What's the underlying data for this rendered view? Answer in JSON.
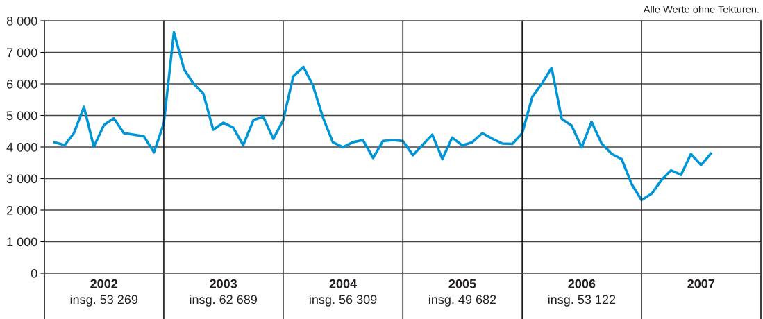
{
  "chart_data": {
    "type": "line",
    "x": [
      "2002-01",
      "2002-02",
      "2002-03",
      "2002-04",
      "2002-05",
      "2002-06",
      "2002-07",
      "2002-08",
      "2002-09",
      "2002-10",
      "2002-11",
      "2002-12",
      "2003-01",
      "2003-02",
      "2003-03",
      "2003-04",
      "2003-05",
      "2003-06",
      "2003-07",
      "2003-08",
      "2003-09",
      "2003-10",
      "2003-11",
      "2003-12",
      "2004-01",
      "2004-02",
      "2004-03",
      "2004-04",
      "2004-05",
      "2004-06",
      "2004-07",
      "2004-08",
      "2004-09",
      "2004-10",
      "2004-11",
      "2004-12",
      "2005-01",
      "2005-02",
      "2005-03",
      "2005-04",
      "2005-05",
      "2005-06",
      "2005-07",
      "2005-08",
      "2005-09",
      "2005-10",
      "2005-11",
      "2005-12",
      "2006-01",
      "2006-02",
      "2006-03",
      "2006-04",
      "2006-05",
      "2006-06",
      "2006-07",
      "2006-08",
      "2006-09",
      "2006-10",
      "2006-11",
      "2006-12",
      "2007-01",
      "2007-02",
      "2007-03",
      "2007-04",
      "2007-05",
      "2007-06",
      "2007-07"
    ],
    "series": [
      {
        "color": "#0096d6",
        "values": [
          4150,
          4060,
          4440,
          5270,
          4010,
          4700,
          4910,
          4440,
          4390,
          4340,
          3830,
          4750,
          7640,
          6460,
          6020,
          5690,
          4550,
          4770,
          4620,
          4060,
          4850,
          4960,
          4260,
          4850,
          6240,
          6540,
          5950,
          4930,
          4150,
          3990,
          4150,
          4220,
          3650,
          4190,
          4220,
          4190,
          3740,
          4080,
          4390,
          3620,
          4300,
          4050,
          4150,
          4440,
          4260,
          4110,
          4100,
          4440,
          5590,
          6040,
          6510,
          4890,
          4680,
          3990,
          4800,
          4110,
          3780,
          3620,
          2820,
          2320,
          2520,
          2970,
          3260,
          3120,
          3780,
          3430,
          3790
        ]
      }
    ],
    "xlim": [
      "2001-12",
      "2007-12"
    ],
    "xticks": [
      {
        "value": "2002-06",
        "label": "2002"
      },
      {
        "value": "2003-06",
        "label": "2003"
      },
      {
        "value": "2004-06",
        "label": "2004"
      },
      {
        "value": "2005-06",
        "label": "2005"
      },
      {
        "value": "2006-06",
        "label": "2006"
      },
      {
        "value": "2007-06",
        "label": "2007"
      }
    ],
    "ylim": [
      0,
      8000
    ],
    "yticks": [
      {
        "value": 0,
        "label": "0"
      },
      {
        "value": 1000,
        "label": "1 000"
      },
      {
        "value": 2000,
        "label": "2 000"
      },
      {
        "value": 3000,
        "label": "3 000"
      },
      {
        "value": 4000,
        "label": "4 000"
      },
      {
        "value": 5000,
        "label": "5 000"
      },
      {
        "value": 6000,
        "label": "6 000"
      },
      {
        "value": 7000,
        "label": "7 000"
      },
      {
        "value": 8000,
        "label": "8 000"
      }
    ],
    "grid": "y",
    "ref_lines": [
      {
        "axis": "x",
        "value": "2002-12",
        "color": "#1a1a1a"
      },
      {
        "axis": "x",
        "value": "2003-12",
        "color": "#1a1a1a"
      },
      {
        "axis": "x",
        "value": "2004-12",
        "color": "#1a1a1a"
      },
      {
        "axis": "x",
        "value": "2005-12",
        "color": "#1a1a1a"
      },
      {
        "axis": "x",
        "value": "2006-12",
        "color": "#1a1a1a"
      }
    ],
    "annotations": [
      "Alle Werte ohne Tekturen.",
      "insg. 53 269",
      "insg. 62 689",
      "insg. 56 309",
      "insg. 49 682",
      "insg. 53 122"
    ],
    "marker": "none",
    "line_style": "solid"
  }
}
